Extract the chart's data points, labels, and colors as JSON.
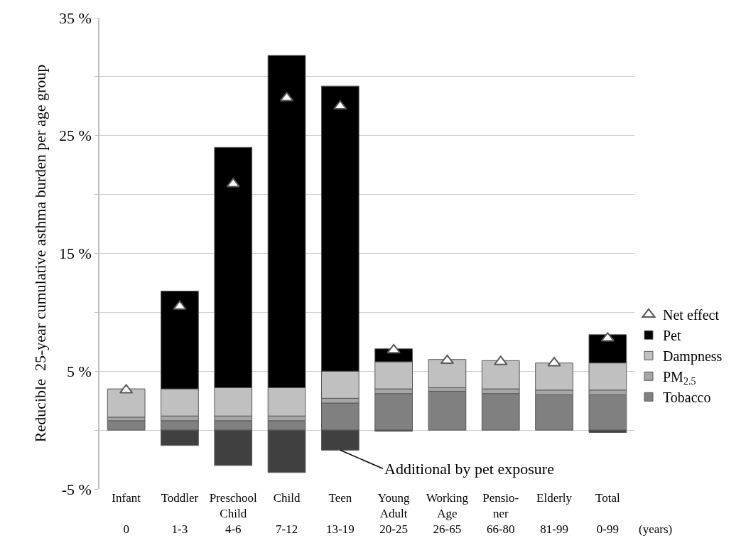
{
  "chart_data": {
    "type": "bar",
    "stacked": true,
    "grid": "y",
    "legend": "right",
    "marker": "triangle",
    "ylabel": "Reducible  25-year cumulative asthma burden per age group",
    "categories": [
      "Infant\n\n0",
      "Toddler\n\n1-3",
      "Preschool\nChild\n4-6",
      "Child\n\n7-12",
      "Teen\n\n13-19",
      "Young\nAdult\n20-25",
      "Working\nAge\n26-65",
      "Pensio-\nner\n66-80",
      "Elderly\n\n81-99",
      "Total\n\n0-99"
    ],
    "series": [
      {
        "name": "Tobacco",
        "color": "#808080",
        "values": [
          0.8,
          0.8,
          0.8,
          0.8,
          2.3,
          3.1,
          3.3,
          3.1,
          3.0,
          3.0
        ]
      },
      {
        "name": "PM$_{2.5}$",
        "color": "#a6a6a6",
        "values": [
          0.3,
          0.4,
          0.4,
          0.4,
          0.4,
          0.4,
          0.3,
          0.4,
          0.4,
          0.4
        ]
      },
      {
        "name": "Dampness",
        "color": "#c0c0c0",
        "values": [
          2.4,
          2.3,
          2.4,
          2.4,
          2.3,
          2.3,
          2.4,
          2.4,
          2.3,
          2.3
        ]
      },
      {
        "name": "Pet",
        "color": "#000000",
        "values": [
          null,
          8.3,
          20.4,
          28.2,
          24.2,
          1.1,
          null,
          null,
          null,
          2.4
        ]
      },
      {
        "color": "#404040",
        "values": [
          null,
          -1.3,
          -3.0,
          -3.6,
          -1.7,
          -0.1,
          null,
          null,
          null,
          -0.2
        ]
      },
      {
        "name": "Net effect",
        "type": "scatter",
        "color": "#595959",
        "values": [
          3.4,
          10.5,
          20.9,
          28.2,
          27.5,
          6.8,
          5.9,
          5.8,
          5.7,
          7.8
        ]
      }
    ],
    "ylim": [
      -5,
      35
    ],
    "yticks": [
      {
        "value": -5,
        "label": "-5 %"
      },
      {
        "value": 0,
        "label": null
      },
      {
        "value": 5,
        "label": "5 %"
      },
      {
        "value": 10,
        "label": null
      },
      {
        "value": 15,
        "label": "15 %"
      },
      {
        "value": 20,
        "label": null
      },
      {
        "value": 25,
        "label": "25 %"
      },
      {
        "value": 30,
        "label": null
      },
      {
        "value": 35,
        "label": "35 %"
      }
    ],
    "annotations": [
      {
        "text": "Additional by pet exposure",
        "x": "Teen\n\n13-19",
        "y": -1.7
      },
      "(years)"
    ]
  }
}
